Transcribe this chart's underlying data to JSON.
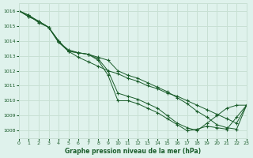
{
  "title": "Graphe pression niveau de la mer (hPa)",
  "bg_color": "#dff2ec",
  "grid_color": "#c8e0d4",
  "line_color": "#1a5c2a",
  "xlim": [
    0,
    23
  ],
  "ylim": [
    1007.5,
    1016.5
  ],
  "yticks": [
    1008,
    1009,
    1010,
    1011,
    1012,
    1013,
    1014,
    1015,
    1016
  ],
  "xticks": [
    0,
    1,
    2,
    3,
    4,
    5,
    6,
    7,
    8,
    9,
    10,
    11,
    12,
    13,
    14,
    15,
    16,
    17,
    18,
    19,
    20,
    21,
    22,
    23
  ],
  "series": [
    [
      1016.0,
      1015.6,
      1015.3,
      1014.9,
      1014.0,
      1013.3,
      1012.9,
      1012.6,
      1012.3,
      1012.0,
      1011.8,
      1011.5,
      1011.3,
      1011.0,
      1010.8,
      1010.5,
      1010.3,
      1010.0,
      1009.7,
      1009.4,
      1009.1,
      1008.8,
      1008.5,
      1009.7
    ],
    [
      1016.0,
      1015.6,
      1015.3,
      1014.9,
      1014.0,
      1013.3,
      1013.2,
      1013.1,
      1012.9,
      1012.7,
      1012.0,
      1011.7,
      1011.5,
      1011.2,
      1010.9,
      1010.6,
      1010.2,
      1009.8,
      1009.3,
      1008.9,
      1008.4,
      1008.2,
      1008.1,
      1009.7
    ],
    [
      1016.0,
      1015.7,
      1015.3,
      1014.9,
      1013.9,
      1013.3,
      1013.2,
      1013.1,
      1012.8,
      1012.0,
      1010.5,
      1010.3,
      1010.1,
      1009.8,
      1009.5,
      1009.0,
      1008.5,
      1008.2,
      1008.0,
      1008.5,
      1009.0,
      1009.5,
      1009.7,
      1009.7
    ],
    [
      1016.0,
      1015.7,
      1015.2,
      1014.9,
      1013.9,
      1013.4,
      1013.2,
      1013.1,
      1012.7,
      1011.7,
      1010.0,
      1010.0,
      1009.8,
      1009.5,
      1009.2,
      1008.8,
      1008.4,
      1008.0,
      1008.1,
      1008.3,
      1008.2,
      1008.1,
      1008.9,
      1009.7
    ]
  ]
}
